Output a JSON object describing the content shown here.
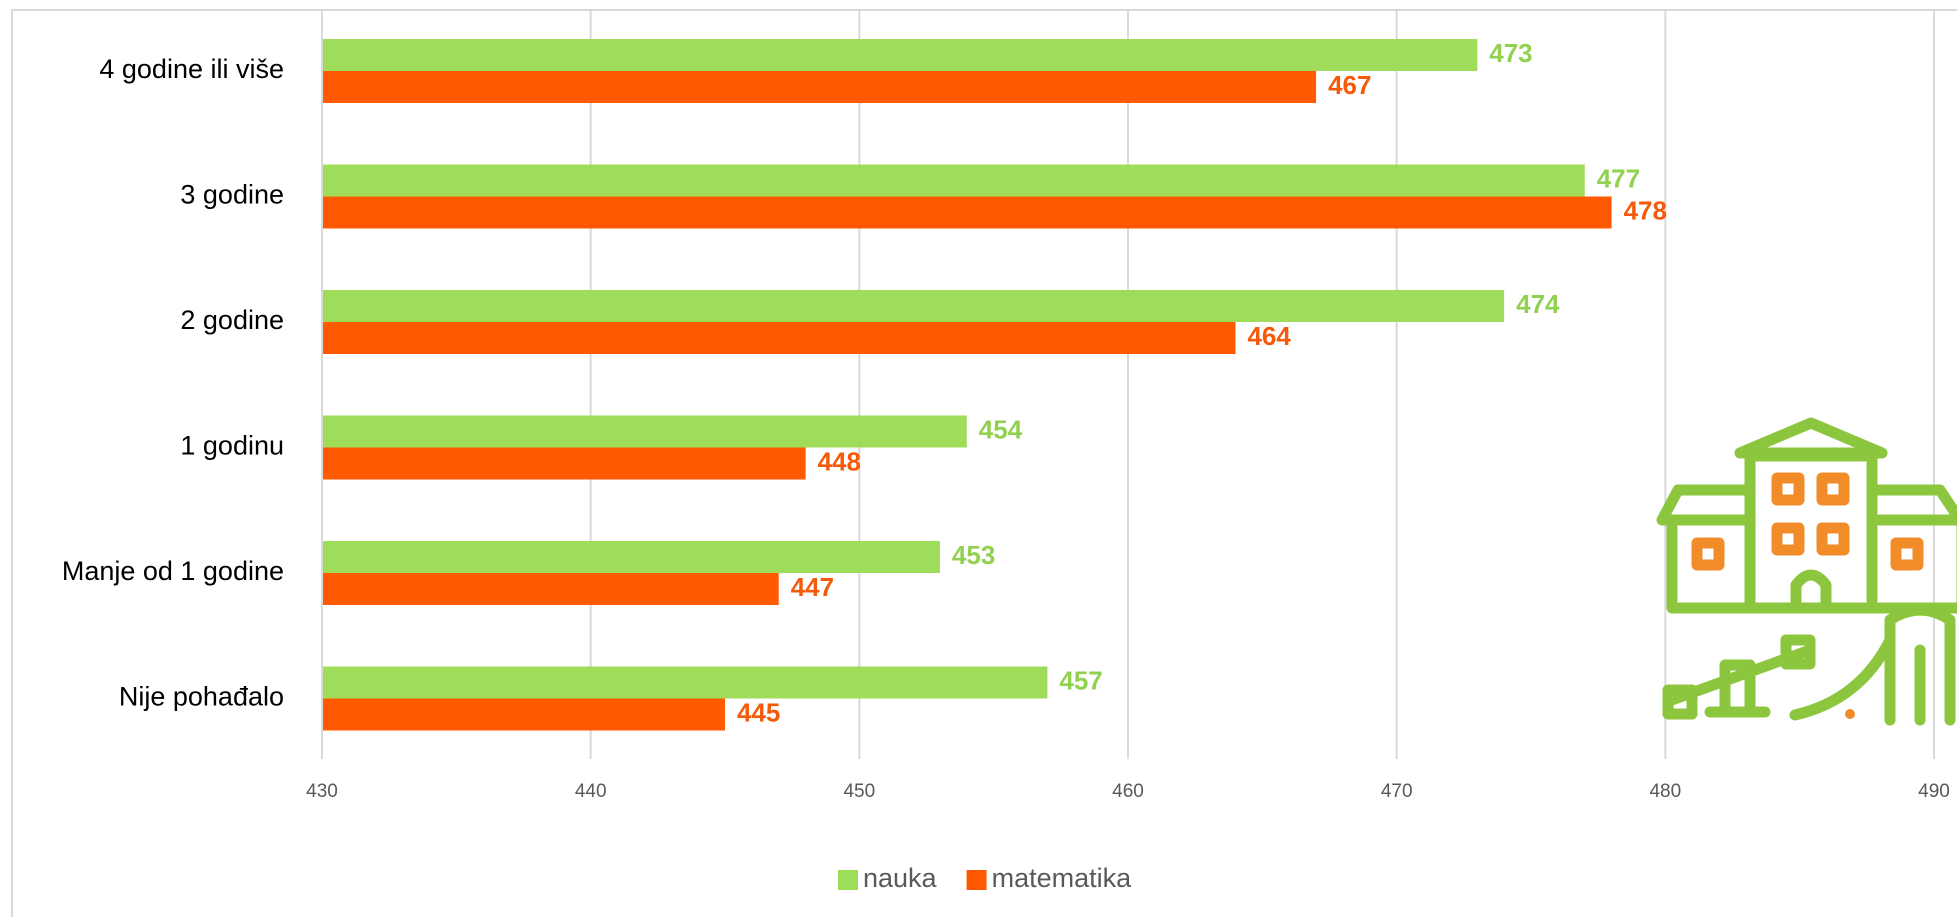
{
  "chart_data": {
    "type": "bar",
    "orientation": "horizontal",
    "categories": [
      "4 godine ili više",
      "3 godine",
      "2 godine",
      "1 godinu",
      "Manje od 1 godine",
      "Nije pohađalo"
    ],
    "series": [
      {
        "name": "nauka",
        "color": "#9fdc5a",
        "label_color": "#92d050",
        "values": [
          473,
          477,
          474,
          454,
          453,
          457
        ]
      },
      {
        "name": "matematika",
        "color": "#ff5a00",
        "label_color": "#f55a0a",
        "values": [
          467,
          478,
          464,
          448,
          447,
          445
        ]
      }
    ],
    "xlim": [
      430,
      490
    ],
    "xticks": [
      430,
      440,
      450,
      460,
      470,
      480,
      490
    ],
    "grid": true,
    "legend": "bottom"
  }
}
